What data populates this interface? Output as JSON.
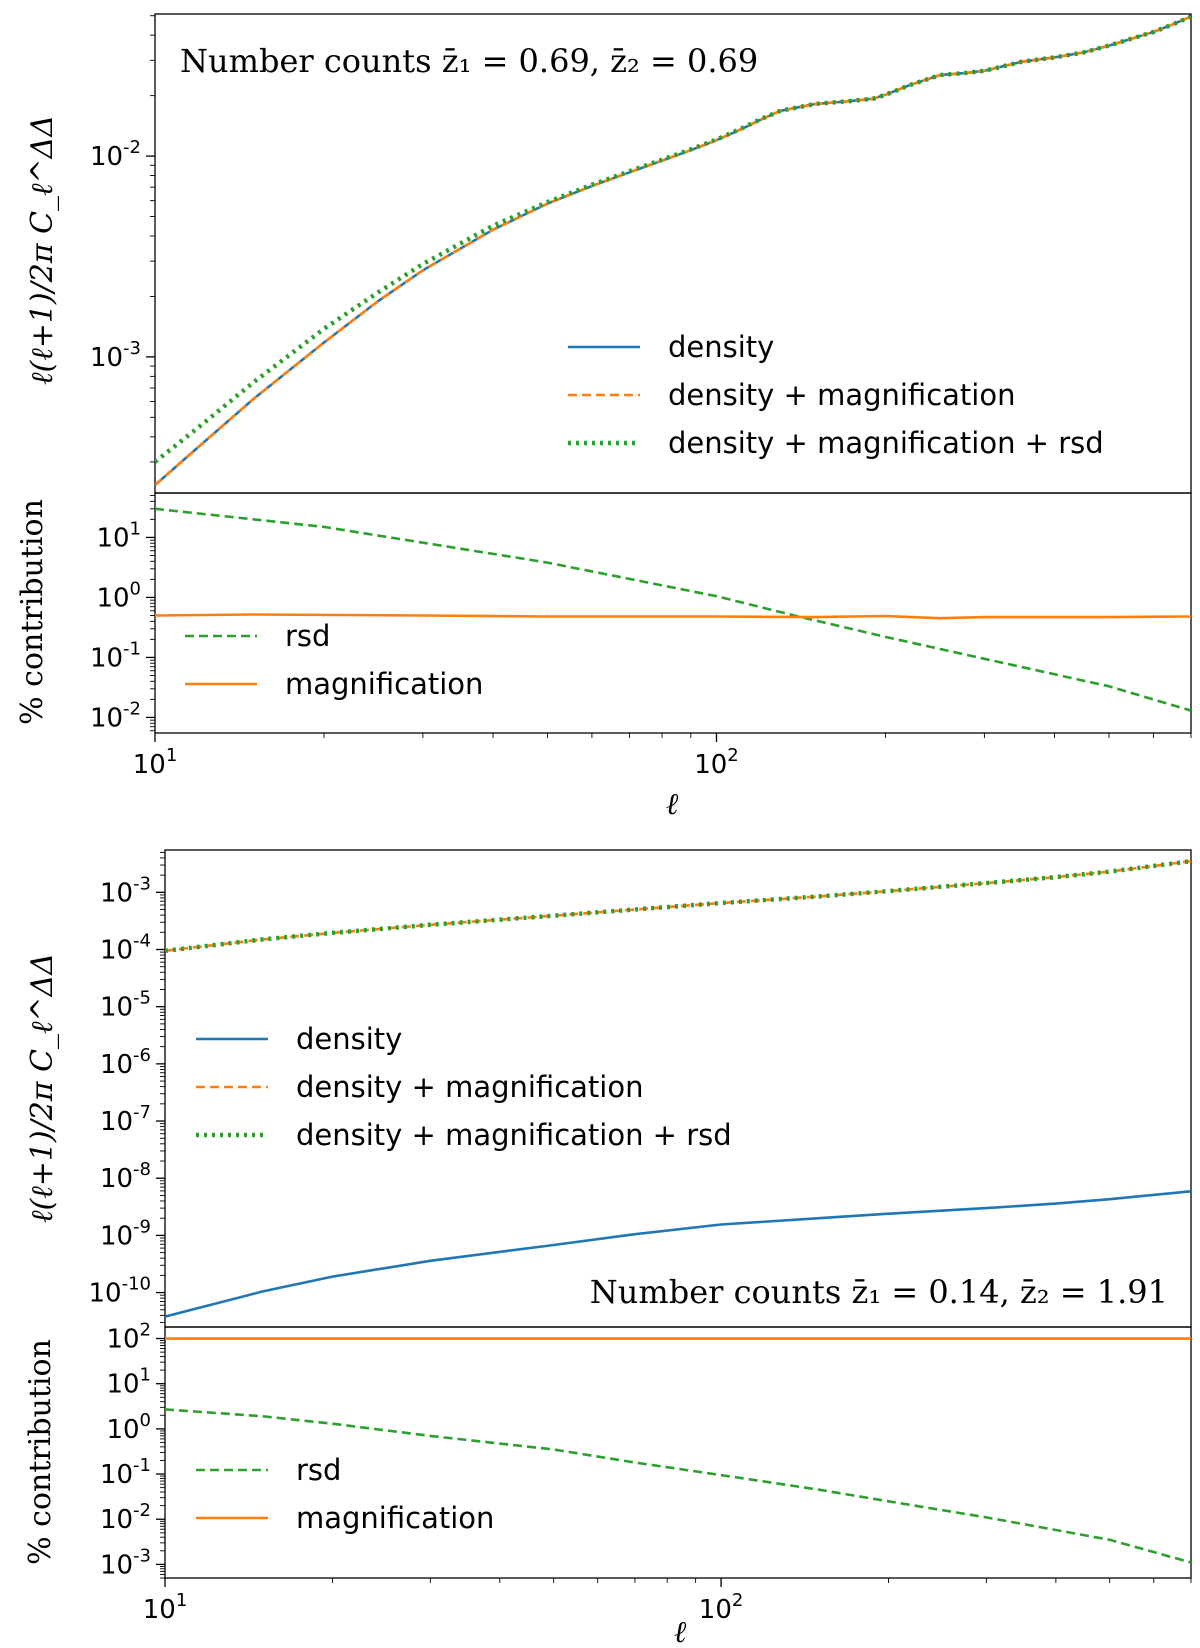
{
  "colors": {
    "density": "#1f77b4",
    "density_magnification": "#ff7f0e",
    "density_magnification_rsd": "#2ca02c",
    "rsd": "#2ca02c",
    "magnification": "#ff7f0e"
  },
  "chart_data": [
    {
      "type": "line",
      "panel": "top-main",
      "annotation": "Number counts z̄₁ = 0.69,  z̄₂ = 0.69",
      "ylabel": "ℓ(ℓ+1)/2π C_ℓ^ΔΔ",
      "xlabel": "",
      "xscale": "log",
      "yscale": "log",
      "xlim": [
        10,
        700
      ],
      "ylim": [
        0.00021,
        0.051
      ],
      "legend_position": "lower-right",
      "yticks": [
        {
          "label": "10",
          "exp": "-3",
          "value": 0.001
        },
        {
          "label": "10",
          "exp": "-2",
          "value": 0.01
        }
      ],
      "series": [
        {
          "name": "density",
          "style": "solid",
          "color": "#1f77b4",
          "x": [
            10,
            12,
            15,
            20,
            25,
            30,
            40,
            50,
            60,
            70,
            80,
            90,
            100,
            110,
            120,
            130,
            150,
            170,
            190,
            200,
            220,
            250,
            280,
            300,
            350,
            400,
            450,
            500,
            550,
            600,
            650,
            700
          ],
          "y": [
            0.00023,
            0.00036,
            0.00062,
            0.00118,
            0.0019,
            0.0027,
            0.0043,
            0.0058,
            0.0071,
            0.0083,
            0.0095,
            0.0107,
            0.012,
            0.0135,
            0.0152,
            0.0168,
            0.0182,
            0.0187,
            0.0193,
            0.0202,
            0.0225,
            0.0253,
            0.026,
            0.0266,
            0.0295,
            0.031,
            0.0328,
            0.0355,
            0.0385,
            0.0415,
            0.0453,
            0.0495
          ]
        },
        {
          "name": "density + magnification",
          "style": "dashed",
          "color": "#ff7f0e",
          "x": [
            10,
            12,
            15,
            20,
            25,
            30,
            40,
            50,
            60,
            70,
            80,
            90,
            100,
            110,
            120,
            130,
            150,
            170,
            190,
            200,
            220,
            250,
            280,
            300,
            350,
            400,
            450,
            500,
            550,
            600,
            650,
            700
          ],
          "y": [
            0.00023,
            0.00036,
            0.00062,
            0.00118,
            0.0019,
            0.0027,
            0.0043,
            0.0058,
            0.0071,
            0.0083,
            0.0095,
            0.0107,
            0.012,
            0.0135,
            0.0152,
            0.0168,
            0.0182,
            0.0187,
            0.0193,
            0.0202,
            0.0225,
            0.0253,
            0.026,
            0.0266,
            0.0295,
            0.031,
            0.0328,
            0.0355,
            0.0385,
            0.0415,
            0.0453,
            0.0495
          ]
        },
        {
          "name": "density + magnification + rsd",
          "style": "dotted",
          "color": "#2ca02c",
          "x": [
            10,
            12,
            15,
            20,
            25,
            30,
            40,
            50,
            60,
            70,
            80,
            90,
            100,
            110,
            120,
            130,
            150,
            170,
            190,
            200,
            220,
            250,
            280,
            300,
            350,
            400,
            450,
            500,
            550,
            600,
            650,
            700
          ],
          "y": [
            0.0003,
            0.00045,
            0.00075,
            0.00138,
            0.0021,
            0.0029,
            0.0045,
            0.0059,
            0.0072,
            0.0084,
            0.0096,
            0.0108,
            0.0121,
            0.0136,
            0.0153,
            0.0168,
            0.0182,
            0.0187,
            0.0193,
            0.0202,
            0.0225,
            0.0253,
            0.026,
            0.0266,
            0.0295,
            0.031,
            0.0328,
            0.0355,
            0.0385,
            0.0415,
            0.0453,
            0.0495
          ]
        }
      ]
    },
    {
      "type": "line",
      "panel": "top-ratio",
      "ylabel": "% contribution",
      "xlabel": "ℓ",
      "xscale": "log",
      "yscale": "log",
      "xlim": [
        10,
        700
      ],
      "ylim": [
        0.0055,
        55
      ],
      "legend_position": "lower-left",
      "yticks": [
        {
          "label": "10",
          "exp": "-2",
          "value": 0.01
        },
        {
          "label": "10",
          "exp": "-1",
          "value": 0.1
        },
        {
          "label": "10",
          "exp": "0",
          "value": 1
        },
        {
          "label": "10",
          "exp": "1",
          "value": 10
        }
      ],
      "xticks": [
        {
          "label": "10",
          "exp": "1",
          "value": 10
        },
        {
          "label": "10",
          "exp": "2",
          "value": 100
        }
      ],
      "series": [
        {
          "name": "rsd",
          "style": "dashed",
          "color": "#2ca02c",
          "x": [
            10,
            20,
            50,
            100,
            140,
            200,
            300,
            500,
            700
          ],
          "y": [
            30,
            15,
            3.8,
            1.05,
            0.48,
            0.22,
            0.095,
            0.033,
            0.013
          ]
        },
        {
          "name": "magnification",
          "style": "solid",
          "color": "#ff7f0e",
          "x": [
            10,
            15,
            30,
            50,
            100,
            150,
            200,
            250,
            300,
            500,
            700
          ],
          "y": [
            0.5,
            0.52,
            0.5,
            0.48,
            0.48,
            0.47,
            0.49,
            0.45,
            0.47,
            0.47,
            0.48
          ]
        }
      ]
    },
    {
      "type": "line",
      "panel": "bottom-main",
      "annotation": "Number counts z̄₁ = 0.14,  z̄₂ = 1.91",
      "ylabel": "ℓ(ℓ+1)/2π C_ℓ^ΔΔ",
      "xlabel": "",
      "xscale": "log",
      "yscale": "log",
      "xlim": [
        10,
        700
      ],
      "ylim": [
        2.5e-11,
        0.0055
      ],
      "legend_position": "center-left",
      "yticks": [
        {
          "label": "10",
          "exp": "-10",
          "value": 1e-10
        },
        {
          "label": "10",
          "exp": "-9",
          "value": 1e-09
        },
        {
          "label": "10",
          "exp": "-8",
          "value": 1e-08
        },
        {
          "label": "10",
          "exp": "-7",
          "value": 1e-07
        },
        {
          "label": "10",
          "exp": "-6",
          "value": 1e-06
        },
        {
          "label": "10",
          "exp": "-5",
          "value": 1e-05
        },
        {
          "label": "10",
          "exp": "-4",
          "value": 0.0001
        },
        {
          "label": "10",
          "exp": "-3",
          "value": 0.001
        }
      ],
      "series": [
        {
          "name": "density",
          "style": "solid",
          "color": "#1f77b4",
          "x": [
            10,
            15,
            20,
            30,
            50,
            70,
            100,
            150,
            200,
            300,
            400,
            500,
            700
          ],
          "y": [
            3.8e-11,
            1.05e-10,
            1.9e-10,
            3.6e-10,
            6.8e-10,
            1.05e-09,
            1.55e-09,
            2e-09,
            2.4e-09,
            3e-09,
            3.6e-09,
            4.3e-09,
            5.9e-09
          ]
        },
        {
          "name": "density + magnification",
          "style": "dashed",
          "color": "#ff7f0e",
          "x": [
            10,
            15,
            20,
            30,
            50,
            70,
            100,
            150,
            200,
            300,
            400,
            500,
            700
          ],
          "y": [
            9.5e-05,
            0.00015,
            0.000195,
            0.00027,
            0.00039,
            0.0005,
            0.00065,
            0.00085,
            0.00105,
            0.00145,
            0.00185,
            0.0023,
            0.0035
          ]
        },
        {
          "name": "density + magnification + rsd",
          "style": "dotted",
          "color": "#2ca02c",
          "x": [
            10,
            15,
            20,
            30,
            50,
            70,
            100,
            150,
            200,
            300,
            400,
            500,
            700
          ],
          "y": [
            9.5e-05,
            0.00015,
            0.000195,
            0.00027,
            0.00039,
            0.0005,
            0.00065,
            0.00085,
            0.00105,
            0.00145,
            0.00185,
            0.0023,
            0.0035
          ]
        }
      ]
    },
    {
      "type": "line",
      "panel": "bottom-ratio",
      "ylabel": "% contribution",
      "xlabel": "ℓ",
      "xscale": "log",
      "yscale": "log",
      "xlim": [
        10,
        700
      ],
      "ylim": [
        0.0005,
        180
      ],
      "legend_position": "lower-left",
      "yticks": [
        {
          "label": "10",
          "exp": "-3",
          "value": 0.001
        },
        {
          "label": "10",
          "exp": "-2",
          "value": 0.01
        },
        {
          "label": "10",
          "exp": "-1",
          "value": 0.1
        },
        {
          "label": "10",
          "exp": "0",
          "value": 1
        },
        {
          "label": "10",
          "exp": "1",
          "value": 10
        },
        {
          "label": "10",
          "exp": "2",
          "value": 100
        }
      ],
      "xticks": [
        {
          "label": "10",
          "exp": "1",
          "value": 10
        },
        {
          "label": "10",
          "exp": "2",
          "value": 100
        }
      ],
      "series": [
        {
          "name": "rsd",
          "style": "dashed",
          "color": "#2ca02c",
          "x": [
            10,
            15,
            20,
            30,
            50,
            70,
            100,
            150,
            200,
            300,
            500,
            700
          ],
          "y": [
            2.7,
            1.9,
            1.3,
            0.7,
            0.35,
            0.18,
            0.095,
            0.045,
            0.025,
            0.011,
            0.0035,
            0.0011
          ]
        },
        {
          "name": "magnification",
          "style": "solid",
          "color": "#ff7f0e",
          "x": [
            10,
            100,
            700
          ],
          "y": [
            99.9,
            99.9,
            99.9
          ]
        }
      ]
    }
  ]
}
